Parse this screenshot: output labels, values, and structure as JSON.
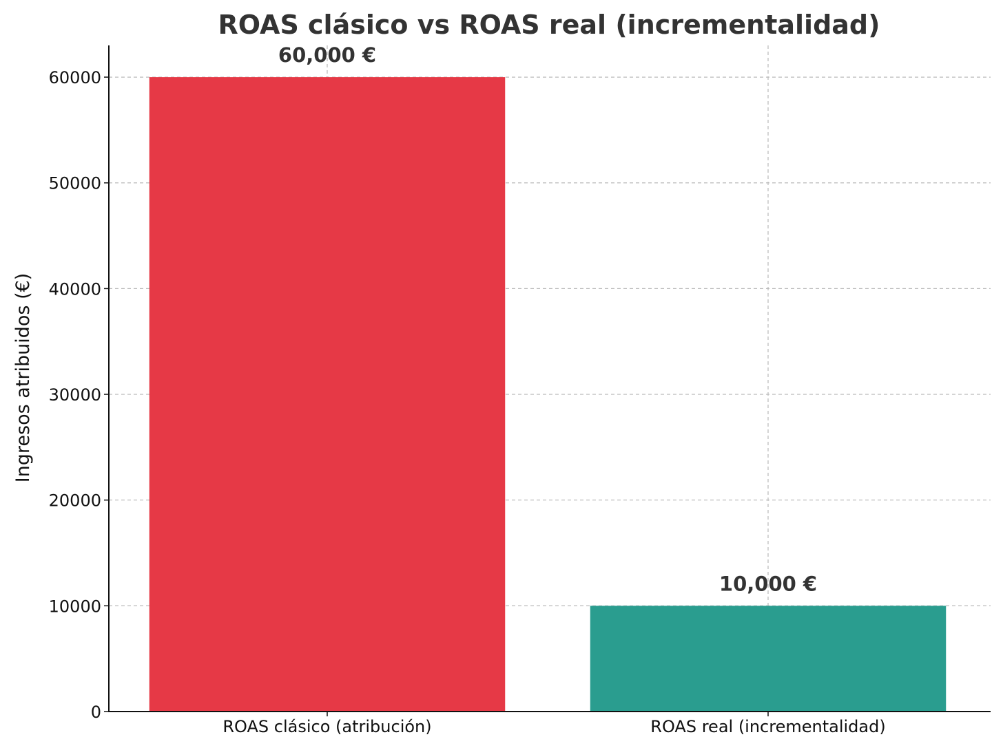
{
  "chart_data": {
    "type": "bar",
    "title": "ROAS clásico vs ROAS real (incrementalidad)",
    "xlabel": "",
    "ylabel": "Ingresos atribuidos (€)",
    "categories": [
      "ROAS clásico (atribución)",
      "ROAS real (incrementalidad)"
    ],
    "values": [
      60000,
      10000
    ],
    "data_labels": [
      "60,000 €",
      "10,000 €"
    ],
    "colors": [
      "#e63946",
      "#2a9d8f"
    ],
    "ylim": [
      0,
      63000
    ],
    "yticks": [
      0,
      10000,
      20000,
      30000,
      40000,
      50000,
      60000
    ],
    "ytick_labels": [
      "0",
      "10000",
      "20000",
      "30000",
      "40000",
      "50000",
      "60000"
    ],
    "grid": true,
    "grid_style": "dashed"
  }
}
